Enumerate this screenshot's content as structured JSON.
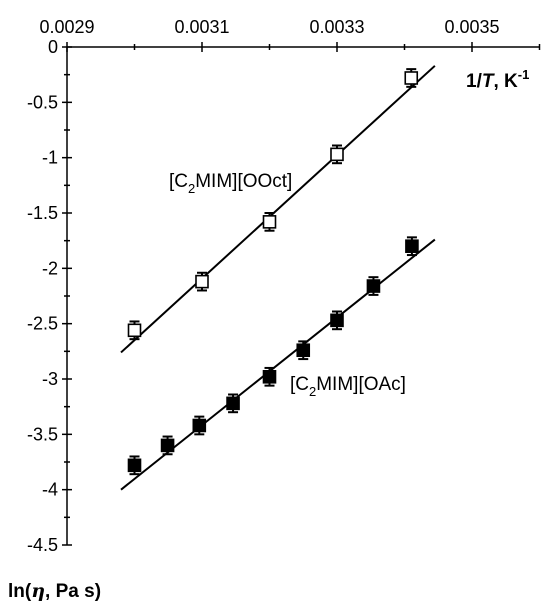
{
  "chart_data": {
    "type": "scatter",
    "x_axis": {
      "position": "top",
      "lim": [
        0.0029,
        0.0036
      ],
      "ticks": [
        "0.0029",
        "0.0031",
        "0.0033",
        "0.0035"
      ],
      "tick_values": [
        0.0029,
        0.0031,
        0.0033,
        0.0035
      ],
      "label_parts": [
        "1/",
        "T",
        ", K",
        "-1"
      ]
    },
    "y_axis": {
      "lim": [
        -4.5,
        0
      ],
      "ticks": [
        "0",
        "-0.5",
        "-1",
        "-1.5",
        "-2",
        "-2.5",
        "-3",
        "-3.5",
        "-4",
        "-4.5"
      ],
      "tick_values": [
        0,
        -0.5,
        -1,
        -1.5,
        -2,
        -2.5,
        -3,
        -3.5,
        -4,
        -4.5
      ],
      "label_parts": [
        "ln(",
        "η",
        ", Pa s)"
      ]
    },
    "grid": false,
    "legend": "none",
    "series": [
      {
        "name_parts": [
          "[C",
          "2",
          "MIM][OOct]"
        ],
        "marker": "open-square",
        "x": [
          0.003,
          0.0031,
          0.0032,
          0.0033,
          0.00341
        ],
        "y": [
          -2.56,
          -2.12,
          -1.58,
          -0.97,
          -0.28
        ],
        "err": [
          0.08,
          0.08,
          0.08,
          0.08,
          0.08
        ],
        "fit_line": {
          "x": [
            0.00298,
            0.003445
          ],
          "y": [
            -2.76,
            -0.17
          ]
        }
      },
      {
        "name_parts": [
          "[C",
          "2",
          "MIM][OAc]"
        ],
        "marker": "filled-square",
        "x": [
          0.003,
          0.003049,
          0.003096,
          0.003146,
          0.0032,
          0.00325,
          0.0033,
          0.003354,
          0.003411
        ],
        "y": [
          -3.78,
          -3.6,
          -3.42,
          -3.22,
          -2.98,
          -2.74,
          -2.47,
          -2.16,
          -1.8
        ],
        "err": [
          0.08,
          0.08,
          0.08,
          0.08,
          0.08,
          0.08,
          0.08,
          0.08,
          0.08
        ],
        "fit_line": {
          "x": [
            0.00298,
            0.003445
          ],
          "y": [
            -4.0,
            -1.74
          ]
        }
      }
    ]
  }
}
